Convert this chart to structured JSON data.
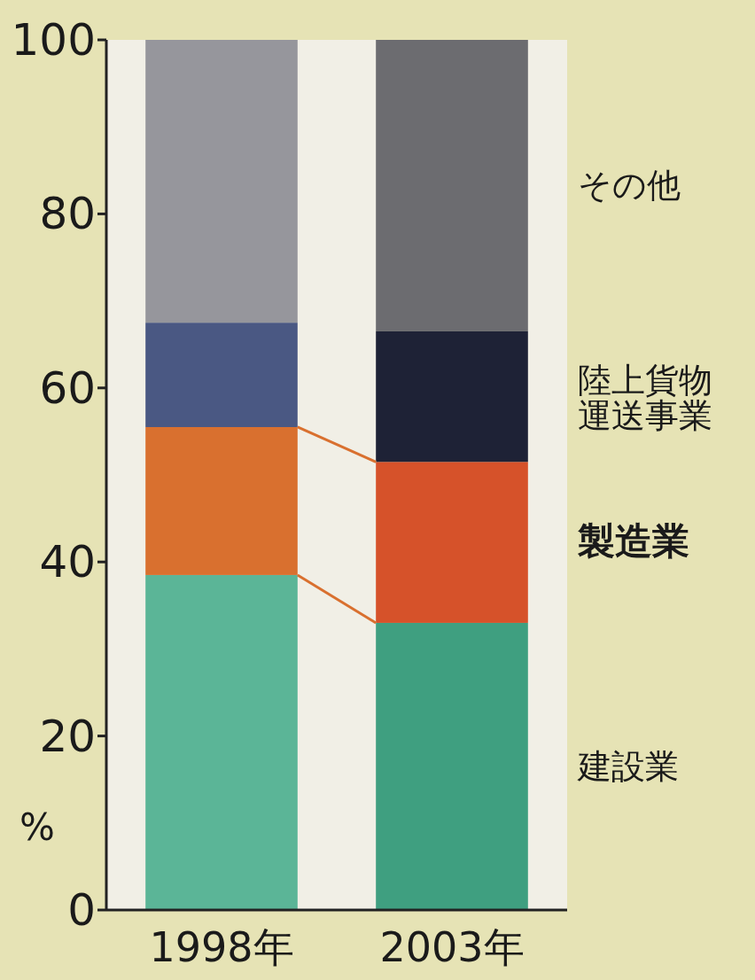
{
  "chart_data": {
    "type": "bar",
    "stacked": true,
    "ylabel": "%",
    "categories": [
      "1998年",
      "2003年"
    ],
    "ylim": [
      0,
      100
    ],
    "yticks": [
      0,
      20,
      40,
      60,
      80,
      100
    ],
    "grid": false,
    "series": [
      {
        "name": "建設業",
        "colors": [
          "#5bb597",
          "#3f9f80"
        ],
        "values": [
          38.5,
          33
        ]
      },
      {
        "name": "製造業",
        "colors": [
          "#d9702f",
          "#d6522a"
        ],
        "values": [
          17,
          18.5
        ]
      },
      {
        "name": "陸上貨物運送事業",
        "colors": [
          "#4a5883",
          "#1e2236"
        ],
        "values": [
          12,
          15
        ]
      },
      {
        "name": "その他",
        "colors": [
          "#96969c",
          "#6c6c70"
        ],
        "values": [
          32.5,
          33.5
        ]
      }
    ]
  }
}
